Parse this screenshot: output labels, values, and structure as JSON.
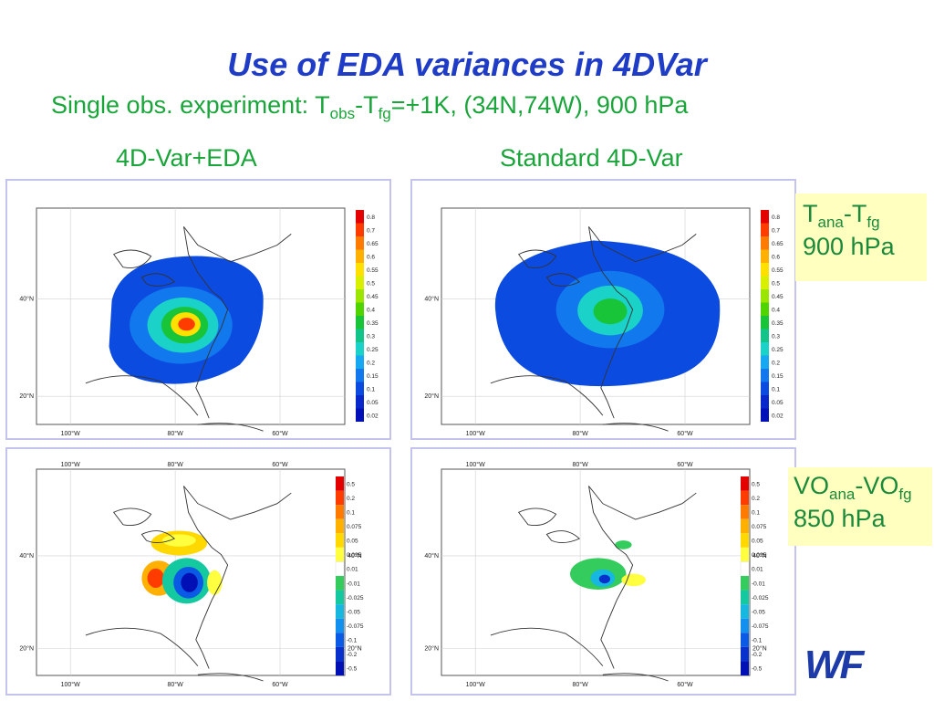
{
  "slide": {
    "title": "Use of EDA variances in 4DVar",
    "subtitle_prefix": "Single obs. experiment: T",
    "subtitle_sub1": "obs",
    "subtitle_mid": "-T",
    "subtitle_sub2": "fg",
    "subtitle_suffix": "=+1K, (34N,74W), 900 hPa",
    "col_left": "4D-Var+EDA",
    "col_right": "Standard 4D-Var",
    "logo": "WF"
  },
  "labels": {
    "top": {
      "a": "T",
      "a_sub": "ana",
      "b": "-T",
      "b_sub": "fg",
      "level": "900 hPa"
    },
    "bottom": {
      "a": "VO",
      "a_sub": "ana",
      "b": "-VO",
      "b_sub": "fg",
      "level": "850 hPa"
    }
  },
  "map_axes": {
    "lon_labels": [
      "100°W",
      "80°W",
      "60°W"
    ],
    "lat_labels": [
      "40°N",
      "20°N"
    ]
  },
  "colorbars": {
    "temperature": {
      "labels": [
        "0.8",
        "0.7",
        "0.65",
        "0.6",
        "0.55",
        "0.5",
        "0.45",
        "0.4",
        "0.35",
        "0.3",
        "0.25",
        "0.2",
        "0.15",
        "0.1",
        "0.05",
        "0.02"
      ],
      "colors": [
        "#e50000",
        "#ff3c00",
        "#ff7a00",
        "#ffb000",
        "#ffe000",
        "#d8f000",
        "#9be600",
        "#4fd400",
        "#18c438",
        "#13c48a",
        "#1ad2c8",
        "#16a8f0",
        "#1278ee",
        "#0c4be0",
        "#0828cc",
        "#0010b8"
      ]
    },
    "vorticity": {
      "labels": [
        "0.5",
        "0.2",
        "0.1",
        "0.075",
        "0.05",
        "0.025",
        "0.01",
        "-0.01",
        "-0.025",
        "-0.05",
        "-0.075",
        "-0.1",
        "-0.2",
        "-0.5"
      ],
      "colors": [
        "#e50000",
        "#ff3c00",
        "#ff7a00",
        "#ffb000",
        "#ffd800",
        "#ffff40",
        "#ffffff",
        "#34cc5c",
        "#14c8a0",
        "#16b8e0",
        "#1290f0",
        "#0a5ae6",
        "#0830cc",
        "#0010b4"
      ]
    }
  }
}
